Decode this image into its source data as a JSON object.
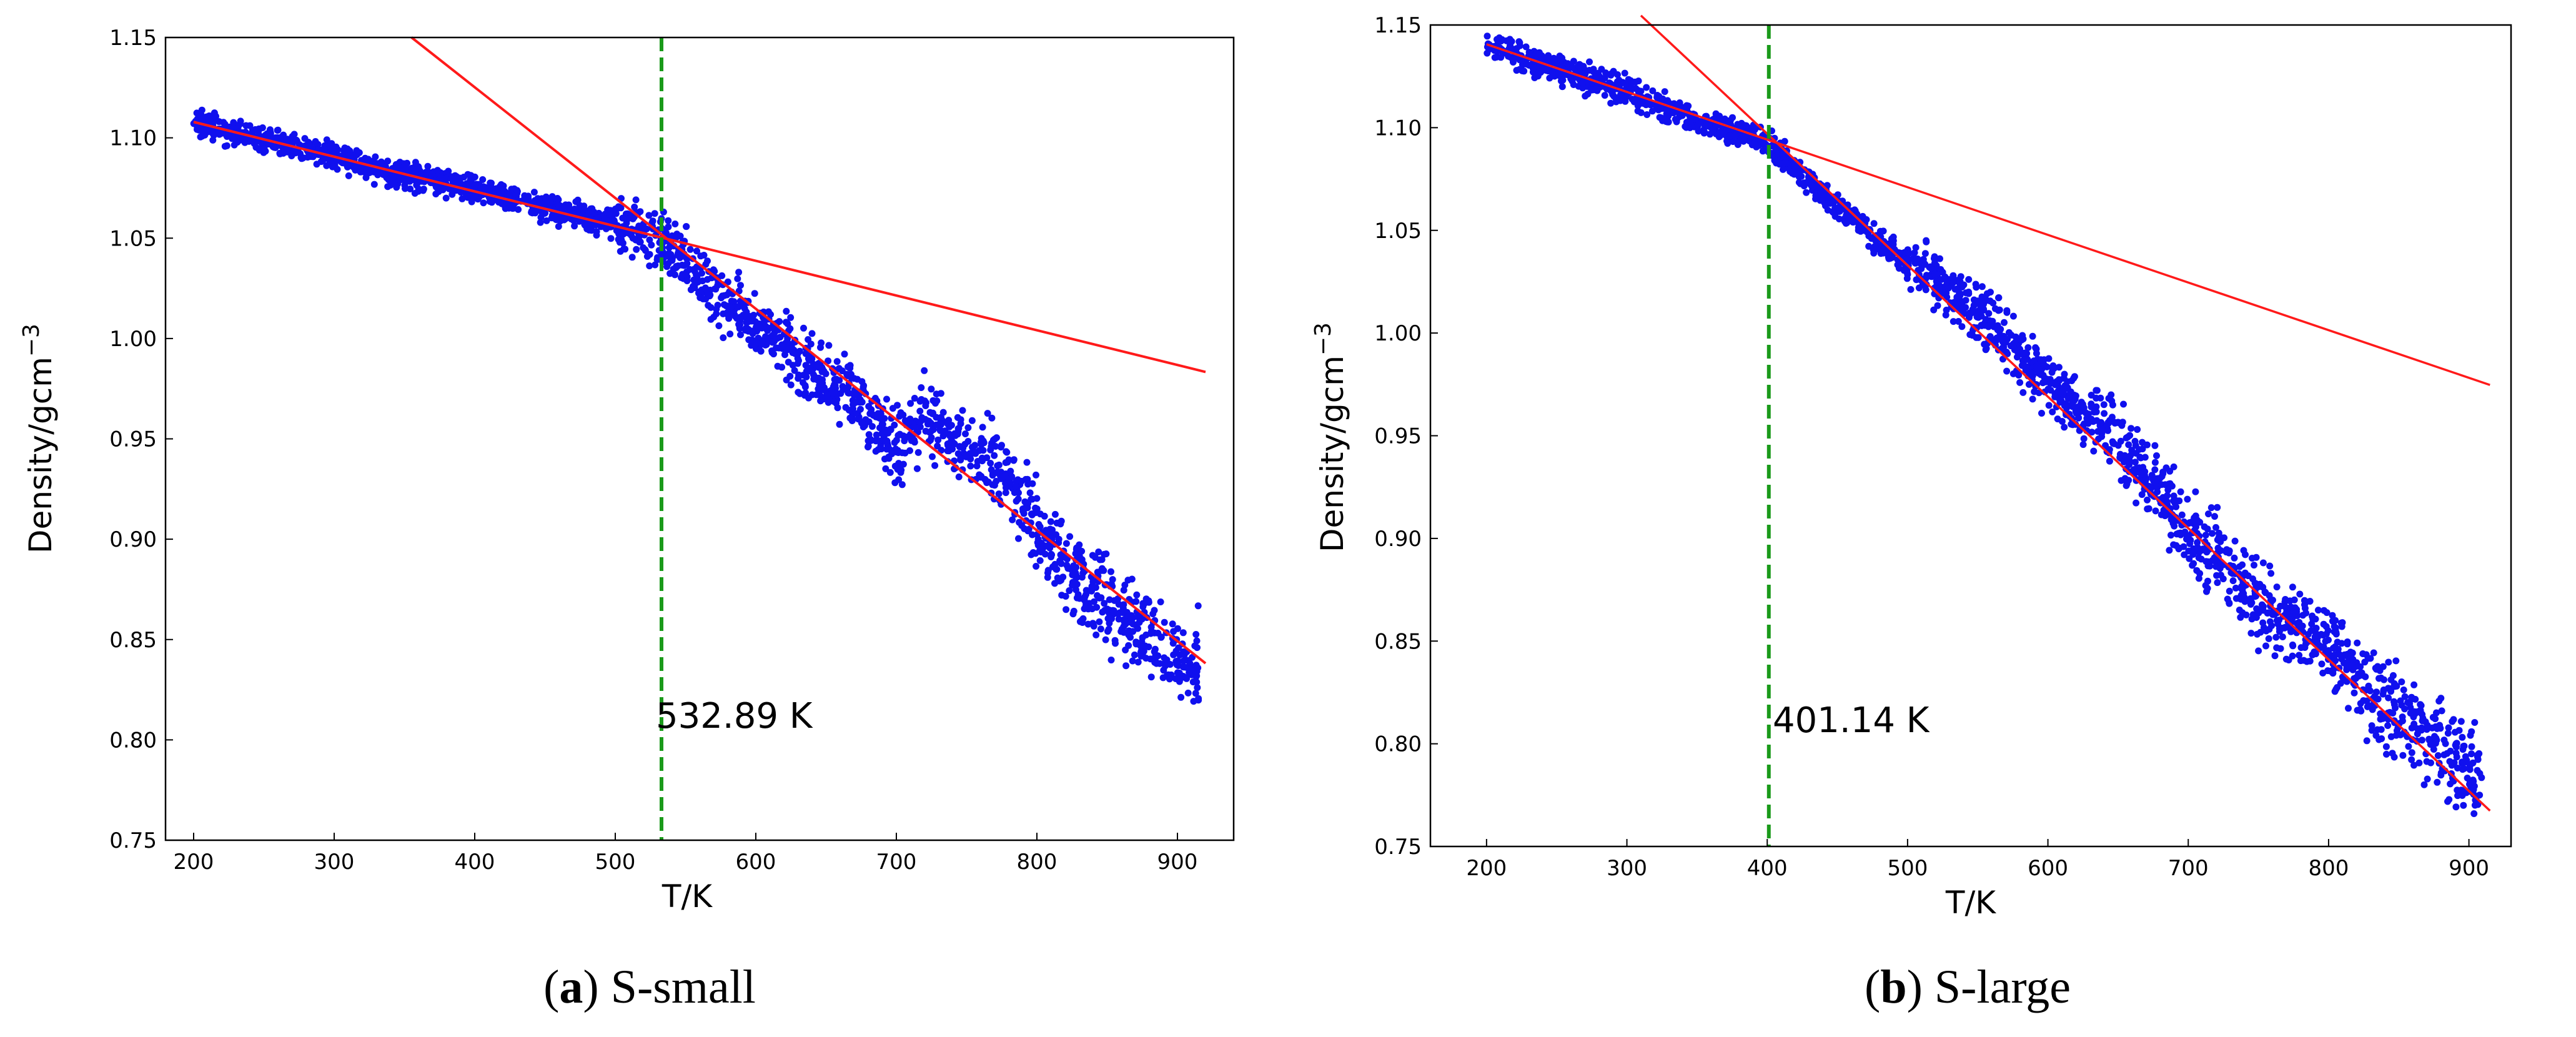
{
  "chart_data": [
    {
      "id": "a",
      "type": "scatter",
      "caption_letter": "a",
      "caption_text": "S-small",
      "xlabel": "T/K",
      "ylabel_base": "Density/gcm",
      "ylabel_exponent": "−3",
      "xlim": [
        180,
        940
      ],
      "ylim": [
        0.75,
        1.15
      ],
      "xticks": [
        "200",
        "300",
        "400",
        "500",
        "600",
        "700",
        "800",
        "900"
      ],
      "yticks": [
        "0.75",
        "0.80",
        "0.85",
        "0.90",
        "0.95",
        "1.00",
        "1.05",
        "1.10",
        "1.15"
      ],
      "transition_T": 532.89,
      "transition_label": "532.89 K",
      "fit_low": {
        "slope": -0.000173,
        "intercept": 1.1425,
        "x_end": 920
      },
      "fit_high": {
        "slope": -0.000552,
        "intercept": 1.346,
        "x_start": 355,
        "x_end": 920
      },
      "series": [
        {
          "name": "density",
          "color": "#1010ee",
          "x": [
            200,
            220,
            240,
            260,
            280,
            300,
            320,
            340,
            360,
            380,
            400,
            420,
            440,
            460,
            480,
            500,
            520,
            540,
            560,
            580,
            600,
            620,
            640,
            660,
            680,
            700,
            720,
            740,
            760,
            780,
            800,
            820,
            840,
            860,
            880,
            900,
            915
          ],
          "y": [
            1.108,
            1.104,
            1.101,
            1.098,
            1.094,
            1.09,
            1.087,
            1.083,
            1.08,
            1.078,
            1.074,
            1.071,
            1.068,
            1.064,
            1.06,
            1.057,
            1.053,
            1.047,
            1.03,
            1.018,
            1.006,
            0.995,
            0.985,
            0.975,
            0.965,
            0.945,
            0.962,
            0.947,
            0.94,
            0.93,
            0.905,
            0.885,
            0.874,
            0.862,
            0.852,
            0.842,
            0.838
          ]
        }
      ]
    },
    {
      "id": "b",
      "type": "scatter",
      "caption_letter": "b",
      "caption_text": "S-large",
      "xlabel": "T/K",
      "ylabel_base": "Density/gcm",
      "ylabel_exponent": "−3",
      "xlim": [
        160,
        930
      ],
      "ylim": [
        0.75,
        1.15
      ],
      "xticks": [
        "200",
        "300",
        "400",
        "500",
        "600",
        "700",
        "800",
        "900"
      ],
      "yticks": [
        "0.75",
        "0.80",
        "0.85",
        "0.90",
        "0.95",
        "1.00",
        "1.05",
        "1.10",
        "1.15"
      ],
      "transition_T": 401.14,
      "transition_label": "401.14 K",
      "fit_low": {
        "slope": -0.000232,
        "intercept": 1.187,
        "x_end": 915
      },
      "fit_high": {
        "slope": -0.00064,
        "intercept": 1.353,
        "x_start": 310,
        "x_end": 915
      },
      "series": [
        {
          "name": "density",
          "color": "#1010ee",
          "x": [
            200,
            220,
            240,
            260,
            280,
            300,
            320,
            340,
            360,
            380,
            400,
            420,
            440,
            460,
            480,
            500,
            520,
            540,
            560,
            580,
            600,
            620,
            640,
            660,
            680,
            700,
            720,
            740,
            760,
            780,
            800,
            820,
            840,
            860,
            880,
            900,
            910
          ],
          "y": [
            1.14,
            1.135,
            1.131,
            1.127,
            1.122,
            1.118,
            1.112,
            1.106,
            1.101,
            1.098,
            1.093,
            1.08,
            1.068,
            1.056,
            1.044,
            1.034,
            1.026,
            1.015,
            1.004,
            0.99,
            0.975,
            0.963,
            0.955,
            0.94,
            0.922,
            0.905,
            0.89,
            0.876,
            0.865,
            0.855,
            0.846,
            0.832,
            0.82,
            0.81,
            0.8,
            0.79,
            0.786
          ]
        }
      ]
    }
  ]
}
